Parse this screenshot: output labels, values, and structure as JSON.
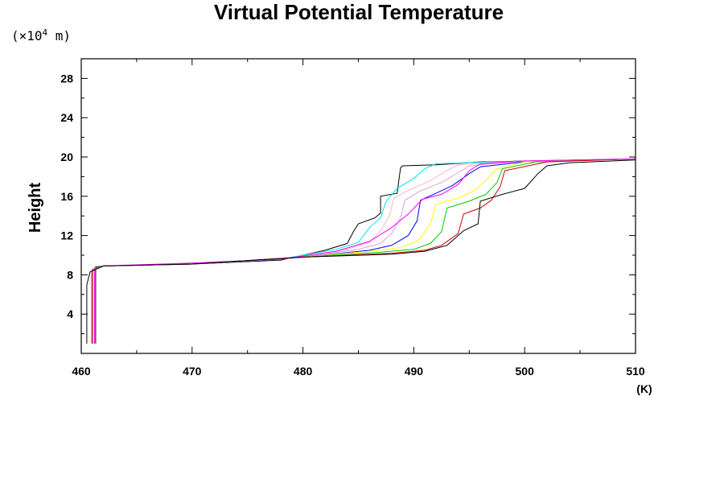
{
  "chart_data": {
    "type": "line",
    "title": "Virtual Potential Temperature",
    "ylabel": "Height",
    "y_unit_prefix": "(×10",
    "y_unit_exp": "4",
    "y_unit_suffix": " m)",
    "xunit": "(K)",
    "xlim": [
      460,
      510
    ],
    "ylim": [
      0,
      30
    ],
    "xticks": [
      460,
      470,
      480,
      490,
      500,
      510
    ],
    "yticks": [
      4,
      8,
      12,
      16,
      20,
      24,
      28
    ],
    "grid": false,
    "series": [
      {
        "color": "#000000",
        "width": 1.8,
        "points": [
          [
            461.3,
            1
          ],
          [
            461.3,
            8.8
          ],
          [
            462,
            8.9
          ],
          [
            470,
            9.1
          ],
          [
            478,
            9.5
          ],
          [
            482,
            10.5
          ],
          [
            484,
            11.2
          ],
          [
            484.6,
            12.5
          ],
          [
            485,
            13.2
          ],
          [
            486.5,
            13.8
          ],
          [
            487,
            14.3
          ],
          [
            487,
            16
          ],
          [
            488.5,
            16.3
          ],
          [
            488.8,
            18.9
          ],
          [
            489,
            19.1
          ],
          [
            492,
            19.2
          ],
          [
            496,
            19.5
          ],
          [
            510,
            19.8
          ]
        ]
      },
      {
        "color": "#00e5ee",
        "points": [
          [
            461.2,
            1
          ],
          [
            461.2,
            8.7
          ],
          [
            462,
            8.9
          ],
          [
            470,
            9.1
          ],
          [
            478,
            9.6
          ],
          [
            483,
            10.6
          ],
          [
            485,
            11.3
          ],
          [
            486,
            12.8
          ],
          [
            487,
            13.8
          ],
          [
            487.5,
            15.5
          ],
          [
            488.5,
            16.8
          ],
          [
            490,
            17.8
          ],
          [
            491,
            18.8
          ],
          [
            492,
            19.3
          ],
          [
            497,
            19.5
          ],
          [
            510,
            19.8
          ]
        ]
      },
      {
        "color": "#ffb6c1",
        "points": [
          [
            461,
            1
          ],
          [
            461,
            8.6
          ],
          [
            462,
            8.9
          ],
          [
            470,
            9.1
          ],
          [
            479,
            9.7
          ],
          [
            484,
            10.6
          ],
          [
            486,
            11.3
          ],
          [
            487,
            12.5
          ],
          [
            487.8,
            14
          ],
          [
            488.2,
            15.8
          ],
          [
            489.5,
            16.6
          ],
          [
            491.5,
            17.6
          ],
          [
            493,
            18.6
          ],
          [
            494,
            19.2
          ],
          [
            498,
            19.5
          ],
          [
            510,
            19.8
          ]
        ]
      },
      {
        "color": "#dda0dd",
        "points": [
          [
            460.9,
            1
          ],
          [
            460.9,
            8.4
          ],
          [
            462,
            8.9
          ],
          [
            470,
            9.1
          ],
          [
            479,
            9.7
          ],
          [
            485,
            10.6
          ],
          [
            487,
            11.2
          ],
          [
            488,
            12.2
          ],
          [
            488.8,
            13.8
          ],
          [
            489.2,
            15.6
          ],
          [
            490.5,
            16.5
          ],
          [
            492.5,
            17.4
          ],
          [
            494,
            18.4
          ],
          [
            495,
            19.1
          ],
          [
            499,
            19.5
          ],
          [
            510,
            19.8
          ]
        ]
      },
      {
        "color": "#0000ff",
        "points": [
          [
            461,
            1
          ],
          [
            461,
            8.5
          ],
          [
            462,
            8.9
          ],
          [
            470,
            9.1
          ],
          [
            480,
            9.8
          ],
          [
            486,
            10.5
          ],
          [
            488,
            11
          ],
          [
            489.5,
            12
          ],
          [
            490.3,
            13.5
          ],
          [
            490.6,
            15.6
          ],
          [
            492,
            16.3
          ],
          [
            493.5,
            17.1
          ],
          [
            495,
            18.3
          ],
          [
            496,
            19
          ],
          [
            500,
            19.5
          ],
          [
            510,
            19.8
          ]
        ]
      },
      {
        "color": "#ffff00",
        "points": [
          [
            461.1,
            1
          ],
          [
            461.1,
            8.6
          ],
          [
            462,
            8.9
          ],
          [
            470,
            9.1
          ],
          [
            480,
            9.8
          ],
          [
            486,
            10.4
          ],
          [
            489,
            10.8
          ],
          [
            490.5,
            11.6
          ],
          [
            491.5,
            13.2
          ],
          [
            492,
            15.2
          ],
          [
            494,
            15.8
          ],
          [
            495.5,
            16.6
          ],
          [
            496.5,
            17.6
          ],
          [
            497.5,
            18.8
          ],
          [
            500,
            19.5
          ],
          [
            510,
            19.8
          ]
        ]
      },
      {
        "color": "#00cc00",
        "points": [
          [
            461.2,
            1
          ],
          [
            461.2,
            8.7
          ],
          [
            462,
            8.9
          ],
          [
            470,
            9.1
          ],
          [
            480,
            9.8
          ],
          [
            487,
            10.3
          ],
          [
            490,
            10.6
          ],
          [
            491.5,
            11.2
          ],
          [
            492.5,
            12.4
          ],
          [
            493,
            14.8
          ],
          [
            495,
            15.5
          ],
          [
            496.5,
            16.2
          ],
          [
            497.5,
            17.4
          ],
          [
            498,
            18.8
          ],
          [
            501,
            19.5
          ],
          [
            510,
            19.8
          ]
        ]
      },
      {
        "color": "#cc0000",
        "points": [
          [
            461,
            1
          ],
          [
            461,
            8.5
          ],
          [
            462,
            8.9
          ],
          [
            470,
            9.1
          ],
          [
            480,
            9.8
          ],
          [
            488,
            10.2
          ],
          [
            491,
            10.5
          ],
          [
            492.5,
            11
          ],
          [
            494,
            12.2
          ],
          [
            494.5,
            14.2
          ],
          [
            496,
            14.8
          ],
          [
            497,
            15.6
          ],
          [
            497.8,
            17
          ],
          [
            498.2,
            18.6
          ],
          [
            502,
            19.5
          ],
          [
            510,
            19.8
          ]
        ]
      },
      {
        "color": "#ff00ff",
        "points": [
          [
            461.2,
            1
          ],
          [
            461.2,
            8.6
          ],
          [
            462,
            8.9
          ],
          [
            470,
            9.2
          ],
          [
            478,
            9.6
          ],
          [
            483,
            10.4
          ],
          [
            486,
            11.4
          ],
          [
            488,
            12.8
          ],
          [
            489.5,
            14.2
          ],
          [
            490.8,
            15.7
          ],
          [
            492.5,
            16.2
          ],
          [
            494,
            17.2
          ],
          [
            495,
            18.6
          ],
          [
            496,
            19.3
          ],
          [
            500,
            19.6
          ],
          [
            510,
            19.8
          ]
        ]
      },
      {
        "color": "#000000",
        "points": [
          [
            460.5,
            1
          ],
          [
            460.5,
            7
          ],
          [
            460.8,
            8.3
          ],
          [
            462,
            8.9
          ],
          [
            470,
            9.1
          ],
          [
            480,
            9.8
          ],
          [
            488,
            10.1
          ],
          [
            491,
            10.4
          ],
          [
            493,
            11
          ],
          [
            494.5,
            12.5
          ],
          [
            495.8,
            13.2
          ],
          [
            496,
            15.5
          ],
          [
            498,
            16.2
          ],
          [
            500,
            16.8
          ],
          [
            501.2,
            18.3
          ],
          [
            502,
            19.1
          ],
          [
            504,
            19.4
          ],
          [
            510,
            19.7
          ]
        ]
      }
    ]
  }
}
